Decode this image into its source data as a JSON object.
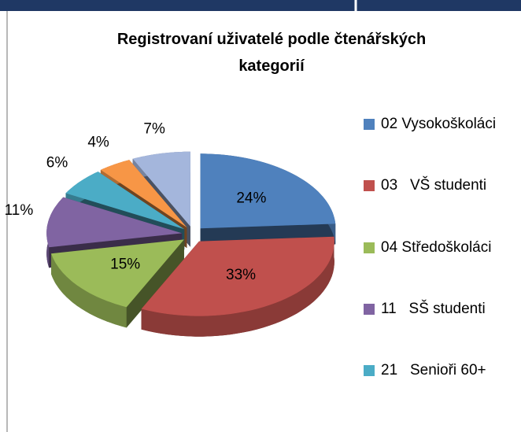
{
  "chart_data": {
    "type": "pie",
    "title": "Registrovaní uživatelé podle čtenářských kategorií",
    "categories": [
      "02 Vysokoškoláci",
      "03   VŠ studenti",
      "04 Středoškoláci",
      "11   SŠ studenti",
      "21   Senioři 60+",
      null,
      null
    ],
    "values": [
      24,
      33,
      15,
      11,
      6,
      4,
      7
    ],
    "value_labels": [
      "24%",
      "33%",
      "15%",
      "11%",
      "6%",
      "4%",
      "7%"
    ],
    "colors": [
      "#4f81bd",
      "#c0504d",
      "#9bbb59",
      "#8064a2",
      "#4bacc6",
      "#f79646",
      "#a4b6dc"
    ],
    "legend": "right"
  }
}
